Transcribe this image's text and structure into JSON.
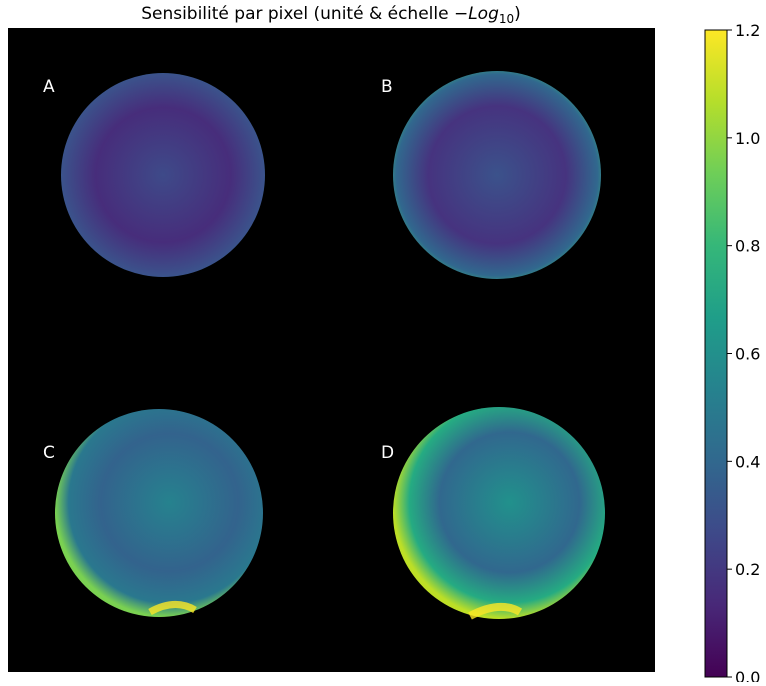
{
  "chart_data": {
    "type": "image",
    "title": {
      "text": "Sensibilité par pixel (unité & échelle ",
      "math": "−Log",
      "subscript": "10",
      "close": ")"
    },
    "panels": [
      "A",
      "B",
      "C",
      "D"
    ],
    "colorbar": {
      "colormap": "viridis",
      "clim": [
        0,
        1.2
      ],
      "ticks": [
        {
          "value": 0,
          "label": "0.0"
        },
        0.2,
        0.4,
        0.6,
        0.8,
        {
          "value": 1,
          "label": "1.0"
        },
        1.2
      ]
    }
  }
}
